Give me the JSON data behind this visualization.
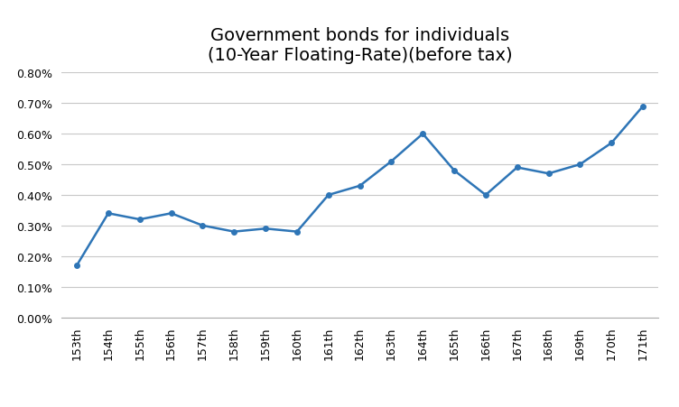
{
  "title_line1": "Government bonds for individuals",
  "title_line2": "(10-Year Floating-Rate)(before tax)",
  "categories": [
    "153th",
    "154th",
    "155th",
    "156th",
    "157th",
    "158th",
    "159th",
    "160th",
    "161th",
    "162th",
    "163th",
    "164th",
    "165th",
    "166th",
    "167th",
    "168th",
    "169th",
    "170th",
    "171th"
  ],
  "values": [
    0.0017,
    0.0034,
    0.0032,
    0.0034,
    0.003,
    0.0028,
    0.0029,
    0.0028,
    0.004,
    0.0043,
    0.0051,
    0.006,
    0.0048,
    0.004,
    0.0049,
    0.0047,
    0.005,
    0.0057,
    0.0069
  ],
  "line_color": "#2E75B6",
  "marker": "o",
  "marker_size": 4,
  "line_width": 1.8,
  "ylim": [
    0.0,
    0.008
  ],
  "yticks": [
    0.0,
    0.001,
    0.002,
    0.003,
    0.004,
    0.005,
    0.006,
    0.007,
    0.008
  ],
  "title_fontsize": 14,
  "tick_fontsize": 9,
  "background_color": "#FFFFFF",
  "grid_color": "#C8C8C8"
}
